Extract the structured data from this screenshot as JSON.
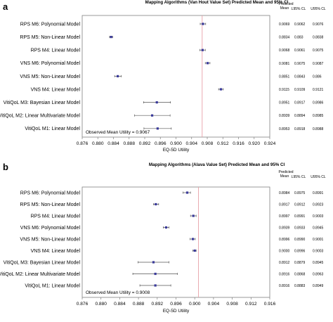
{
  "chart_data": [
    {
      "type": "forest",
      "panel": "a",
      "title": "Mapping Algorithms (Van Hout Value Set) Predicted Mean and 95% CI",
      "xlabel": "EQ-5D Utility",
      "xlim": [
        0.876,
        0.924
      ],
      "ticks": [
        "0.876",
        "0.880",
        "0.884",
        "0.888",
        "0.892",
        "0.896",
        "0.900",
        "0.904",
        "0.908",
        "0.912",
        "0.916",
        "0.920",
        "0.924"
      ],
      "reference_line": 0.9067,
      "reference_label": "Observed Mean Utility = 0.9067",
      "columns": [
        "Predicted Mean",
        "L95% CL",
        "U95% CL"
      ],
      "rows": [
        {
          "model": "RPS M6: Polynomial Model",
          "mean": 0.9069,
          "lcl": 0.9062,
          "ucl": 0.9076,
          "mean_text": "0.9069",
          "lcl_text": "0.9062",
          "ucl_text": "0.9076"
        },
        {
          "model": "RPS M5: Non-Linear Model",
          "mean": 0.8834,
          "lcl": 0.883,
          "ucl": 0.8838,
          "mean_text": "0.8834",
          "lcl_text": "0.883",
          "ucl_text": "0.8838"
        },
        {
          "model": "RPS M4: Linear Model",
          "mean": 0.9068,
          "lcl": 0.9061,
          "ucl": 0.9075,
          "mean_text": "0.9068",
          "lcl_text": "0.9061",
          "ucl_text": "0.9075"
        },
        {
          "model": "VNS M6: Polynomial Model",
          "mean": 0.9081,
          "lcl": 0.9075,
          "ucl": 0.9087,
          "mean_text": "0.9081",
          "lcl_text": "0.9075",
          "ucl_text": "0.9087"
        },
        {
          "model": "VNS M5: Non-Linear Model",
          "mean": 0.8851,
          "lcl": 0.8843,
          "ucl": 0.886,
          "mean_text": "0.8851",
          "lcl_text": "0.8843",
          "ucl_text": "0.886"
        },
        {
          "model": "VNS M4: Linear Model",
          "mean": 0.9115,
          "lcl": 0.9109,
          "ucl": 0.9121,
          "mean_text": "0.9115",
          "lcl_text": "0.9109",
          "ucl_text": "0.9121"
        },
        {
          "model": "VitiQoL M3: Bayesian Linear Model",
          "mean": 0.8951,
          "lcl": 0.8917,
          "ucl": 0.8986,
          "mean_text": "0.8951",
          "lcl_text": "0.8917",
          "ucl_text": "0.8986"
        },
        {
          "model": "VitiQoL M2: Linear Multivariate Model",
          "mean": 0.8939,
          "lcl": 0.8894,
          "ucl": 0.8985,
          "mean_text": "0.8939",
          "lcl_text": "0.8894",
          "ucl_text": "0.8985"
        },
        {
          "model": "VitiQoL M1: Linear Model",
          "mean": 0.8953,
          "lcl": 0.8918,
          "ucl": 0.8988,
          "mean_text": "0.8953",
          "lcl_text": "0.8918",
          "ucl_text": "0.8988"
        }
      ]
    },
    {
      "type": "forest",
      "panel": "b",
      "title": "Mapping Algorithms (Alava Value Set) Predicted Mean and 95% CI",
      "xlabel": "EQ-5D Utility",
      "xlim": [
        0.876,
        0.916
      ],
      "ticks": [
        "0.876",
        "0.880",
        "0.884",
        "0.888",
        "0.892",
        "0.896",
        "0.900",
        "0.904",
        "0.908",
        "0.912",
        "0.916"
      ],
      "reference_line": 0.9008,
      "reference_label": "Observed Mean Utility = 0.9008",
      "columns": [
        "Predicted Mean",
        "L95% CL",
        "U95% CL"
      ],
      "rows": [
        {
          "model": "RPS M6: Polynomial Model",
          "mean": 0.8984,
          "lcl": 0.8975,
          "ucl": 0.8991,
          "mean_text": "0.8984",
          "lcl_text": "0.8975",
          "ucl_text": "0.8991"
        },
        {
          "model": "RPS M5: Non-Linear Model",
          "mean": 0.8917,
          "lcl": 0.8912,
          "ucl": 0.8923,
          "mean_text": "0.8917",
          "lcl_text": "0.8912",
          "ucl_text": "0.8923"
        },
        {
          "model": "RPS M4: Linear Model",
          "mean": 0.8997,
          "lcl": 0.8991,
          "ucl": 0.9003,
          "mean_text": "0.8997",
          "lcl_text": "0.8991",
          "ucl_text": "0.9003"
        },
        {
          "model": "VNS M6: Polynomial Model",
          "mean": 0.8939,
          "lcl": 0.8933,
          "ucl": 0.8945,
          "mean_text": "0.8939",
          "lcl_text": "0.8933",
          "ucl_text": "0.8945"
        },
        {
          "model": "VNS M5: Non-Linear Model",
          "mean": 0.8996,
          "lcl": 0.899,
          "ucl": 0.9001,
          "mean_text": "0.8996",
          "lcl_text": "0.8990",
          "ucl_text": "0.9001"
        },
        {
          "model": "VNS M4: Linear Model",
          "mean": 0.9,
          "lcl": 0.8996,
          "ucl": 0.9003,
          "mean_text": "0.9000",
          "lcl_text": "0.8996",
          "ucl_text": "0.9003"
        },
        {
          "model": "VitiQoL M3: Bayesian Linear Model",
          "mean": 0.8912,
          "lcl": 0.8879,
          "ucl": 0.8945,
          "mean_text": "0.8912",
          "lcl_text": "0.8879",
          "ucl_text": "0.8945"
        },
        {
          "model": "VitiQoL M2: Linear Multivariate Model",
          "mean": 0.8916,
          "lcl": 0.8868,
          "ucl": 0.8963,
          "mean_text": "0.8916",
          "lcl_text": "0.8868",
          "ucl_text": "0.8963"
        },
        {
          "model": "VitiQoL M1: Linear Model",
          "mean": 0.8916,
          "lcl": 0.8883,
          "ucl": 0.8949,
          "mean_text": "0.8916",
          "lcl_text": "0.8883",
          "ucl_text": "0.8949"
        }
      ]
    }
  ],
  "colors": {
    "point": "#3a3a9a",
    "ci": "#555555",
    "reference": "#e8a0a8",
    "frame": "#808080"
  }
}
